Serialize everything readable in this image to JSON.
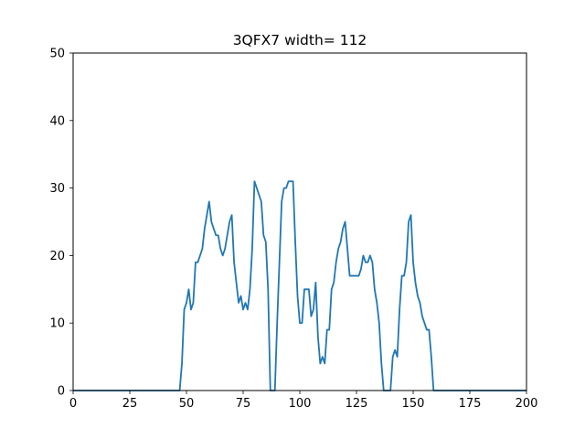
{
  "chart_data": {
    "type": "line",
    "title": "3QFX7 width= 112",
    "xlabel": "",
    "ylabel": "",
    "xlim": [
      0,
      200
    ],
    "ylim": [
      0,
      50
    ],
    "x_ticks": [
      0,
      25,
      50,
      75,
      100,
      125,
      150,
      175,
      200
    ],
    "y_ticks": [
      0,
      10,
      20,
      30,
      40,
      50
    ],
    "grid": false,
    "series": [
      {
        "color": "#1f77b4",
        "x": [
          0,
          47,
          48,
          49,
          50,
          51,
          52,
          53,
          54,
          55,
          56,
          57,
          58,
          59,
          60,
          61,
          62,
          63,
          64,
          65,
          66,
          67,
          68,
          69,
          70,
          71,
          72,
          73,
          74,
          75,
          76,
          77,
          78,
          79,
          80,
          81,
          82,
          83,
          84,
          85,
          86,
          87,
          88,
          89,
          90,
          91,
          92,
          93,
          94,
          95,
          96,
          97,
          98,
          99,
          100,
          101,
          102,
          103,
          104,
          105,
          106,
          107,
          108,
          109,
          110,
          111,
          112,
          113,
          114,
          115,
          116,
          117,
          118,
          119,
          120,
          121,
          122,
          123,
          124,
          125,
          126,
          127,
          128,
          129,
          130,
          131,
          132,
          133,
          134,
          135,
          136,
          137,
          138,
          139,
          140,
          141,
          142,
          143,
          144,
          145,
          146,
          147,
          148,
          149,
          150,
          151,
          152,
          153,
          154,
          155,
          156,
          157,
          158,
          159,
          160,
          200
        ],
        "y": [
          0,
          0,
          4,
          12,
          13,
          15,
          12,
          13,
          19,
          19,
          20,
          21,
          24,
          26,
          28,
          25,
          24,
          23,
          23,
          21,
          20,
          21,
          23,
          25,
          26,
          19,
          16,
          13,
          14,
          12,
          13,
          12,
          15,
          21,
          31,
          30,
          29,
          28,
          23,
          22,
          15,
          0,
          0,
          0,
          10,
          19,
          28,
          30,
          30,
          31,
          31,
          31,
          22,
          14,
          10,
          10,
          15,
          15,
          15,
          11,
          12,
          16,
          8,
          4,
          5,
          4,
          9,
          9,
          15,
          16,
          19,
          21,
          22,
          24,
          25,
          21,
          17,
          17,
          17,
          17,
          17,
          18,
          20,
          19,
          19,
          20,
          19,
          15,
          13,
          10,
          4,
          0,
          0,
          0,
          0,
          5,
          6,
          5,
          12,
          17,
          17,
          19,
          25,
          26,
          19,
          16,
          14,
          13,
          11,
          10,
          9,
          9,
          5,
          0,
          0,
          0
        ]
      }
    ]
  }
}
